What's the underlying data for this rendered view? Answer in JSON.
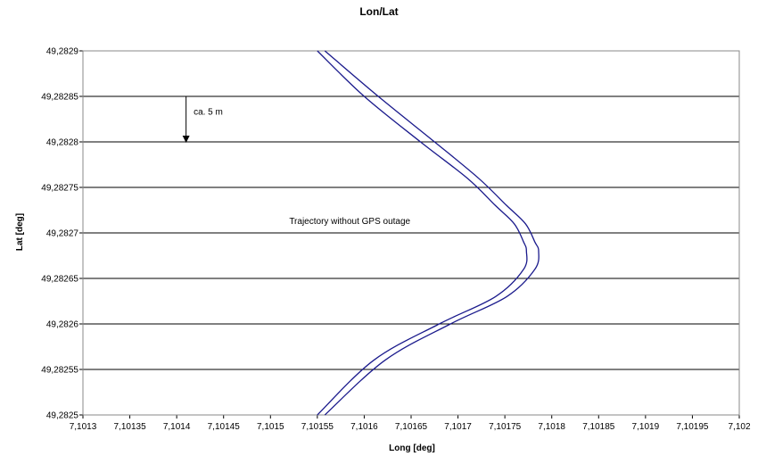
{
  "chart_data": {
    "type": "line",
    "title": "Lon/Lat",
    "xlabel": "Long [deg]",
    "ylabel": "Lat [deg]",
    "xlim": [
      7.1013,
      7.102
    ],
    "ylim": [
      49.2825,
      49.2829
    ],
    "x_ticks": [
      7.1013,
      7.10135,
      7.1014,
      7.10145,
      7.1015,
      7.10155,
      7.1016,
      7.10165,
      7.1017,
      7.10175,
      7.1018,
      7.10185,
      7.1019,
      7.10195,
      7.102
    ],
    "x_tick_labels": [
      "7,1013",
      "7,10135",
      "7,1014",
      "7,10145",
      "7,1015",
      "7,10155",
      "7,1016",
      "7,10165",
      "7,1017",
      "7,10175",
      "7,1018",
      "7,10185",
      "7,1019",
      "7,10195",
      "7,102"
    ],
    "y_ticks": [
      49.2825,
      49.28255,
      49.2826,
      49.28265,
      49.2827,
      49.28275,
      49.2828,
      49.28285,
      49.2829
    ],
    "y_tick_labels": [
      "49,2825",
      "49,28255",
      "49,2826",
      "49,28265",
      "49,2827",
      "49,28275",
      "49,2828",
      "49,28285",
      "49,2829"
    ],
    "grid": "horizontal",
    "series": [
      {
        "color": "#1a1a8c",
        "x": [
          7.10155,
          7.1016,
          7.10166,
          7.10171,
          7.10174,
          7.10176,
          7.10177,
          7.101773,
          7.10177,
          7.10174,
          7.10168,
          7.10161,
          7.10155
        ],
        "y": [
          49.2829,
          49.28285,
          49.2828,
          49.28276,
          49.28273,
          49.28271,
          49.28269,
          49.28268,
          49.28266,
          49.28263,
          49.2826,
          49.28256,
          49.2825
        ]
      },
      {
        "color": "#1a1a8c",
        "x": [
          7.101558,
          7.101615,
          7.101675,
          7.101722,
          7.101752,
          7.101772,
          7.101782,
          7.101786,
          7.101782,
          7.101752,
          7.101692,
          7.101622,
          7.101558
        ],
        "y": [
          49.2829,
          49.28285,
          49.2828,
          49.28276,
          49.28273,
          49.28271,
          49.28269,
          49.28268,
          49.28266,
          49.28263,
          49.2826,
          49.28256,
          49.2825
        ]
      }
    ],
    "annotations": [
      {
        "text": "ca. 5 m",
        "x": 7.101418,
        "y": 49.28283
      },
      {
        "text": "Trajectory without GPS outage",
        "x": 7.10152,
        "y": 49.28271
      }
    ],
    "arrow": {
      "x": 7.10141,
      "y_from": 49.28285,
      "y_to": 49.2828
    }
  }
}
